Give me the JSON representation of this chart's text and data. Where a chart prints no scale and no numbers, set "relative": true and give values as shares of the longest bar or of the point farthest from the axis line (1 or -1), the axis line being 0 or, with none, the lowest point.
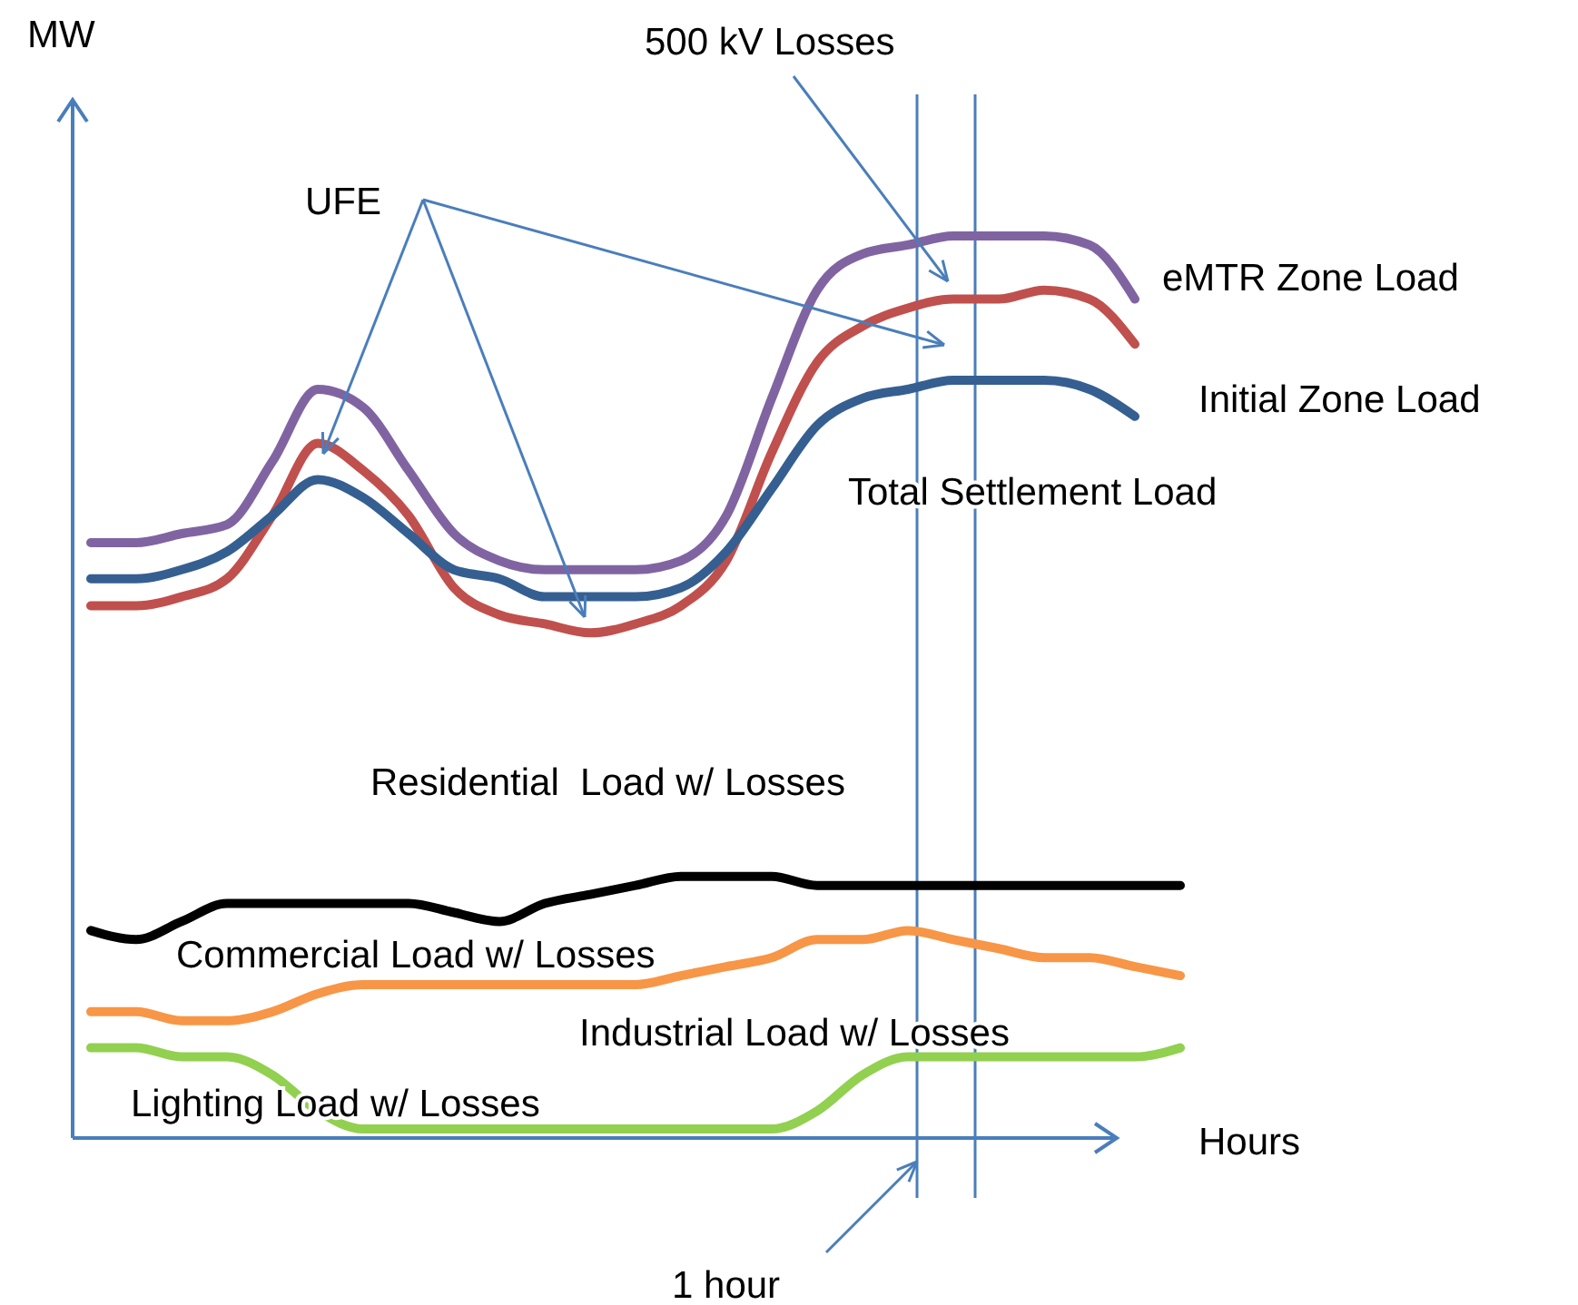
{
  "chart_data": {
    "type": "line",
    "relative": true,
    "xlabel": "Hours",
    "ylabel": "MW",
    "categories": [
      null,
      null,
      null,
      null,
      null,
      null,
      null,
      null,
      null,
      null,
      null,
      null,
      null,
      null,
      null,
      null,
      null,
      null,
      null,
      null,
      null,
      null,
      null,
      null,
      null
    ],
    "series": [
      {
        "name": "eMTR Zone Load",
        "color": "#8064a2",
        "values": [
          0.66,
          0.66,
          0.67,
          0.68,
          0.75,
          0.83,
          0.81,
          0.74,
          0.67,
          0.64,
          0.63,
          0.63,
          0.63,
          0.64,
          0.69,
          0.82,
          0.94,
          0.98,
          0.99,
          1.0,
          1.0,
          1.0,
          0.99,
          0.93,
          null
        ]
      },
      {
        "name": "Initial Zone Load",
        "color": "#c0504d",
        "values": [
          0.59,
          0.59,
          0.6,
          0.62,
          0.69,
          0.77,
          0.74,
          0.69,
          0.61,
          0.58,
          0.57,
          0.56,
          0.57,
          0.59,
          0.64,
          0.76,
          0.86,
          0.9,
          0.92,
          0.93,
          0.93,
          0.94,
          0.93,
          0.88,
          null
        ]
      },
      {
        "name": "Total Settlement Load",
        "color": "#355f91",
        "values": [
          0.62,
          0.62,
          0.63,
          0.65,
          0.69,
          0.73,
          0.71,
          0.67,
          0.63,
          0.62,
          0.6,
          0.6,
          0.6,
          0.61,
          0.65,
          0.72,
          0.79,
          0.82,
          0.83,
          0.84,
          0.84,
          0.84,
          0.83,
          0.8,
          null
        ]
      },
      {
        "name": "Residential  Load w/ Losses",
        "color": "#000000",
        "values": [
          0.23,
          0.22,
          0.24,
          0.26,
          0.26,
          0.26,
          0.26,
          0.26,
          0.25,
          0.24,
          0.26,
          0.27,
          0.28,
          0.29,
          0.29,
          0.29,
          0.28,
          0.28,
          0.28,
          0.28,
          0.28,
          0.28,
          0.28,
          0.28,
          0.28
        ]
      },
      {
        "name": "Commercial Load w/ Losses",
        "color": "#f79646",
        "values": [
          0.14,
          0.14,
          0.13,
          0.13,
          0.14,
          0.16,
          0.17,
          0.17,
          0.17,
          0.17,
          0.17,
          0.17,
          0.17,
          0.18,
          0.19,
          0.2,
          0.22,
          0.22,
          0.23,
          0.22,
          0.21,
          0.2,
          0.2,
          0.19,
          0.18
        ]
      },
      {
        "name": "Lighting Load w/ Losses",
        "color": "#92d050",
        "values": [
          0.1,
          0.1,
          0.09,
          0.09,
          0.07,
          0.03,
          0.01,
          0.01,
          0.01,
          0.01,
          0.01,
          0.01,
          0.01,
          0.01,
          0.01,
          0.01,
          0.03,
          0.07,
          0.09,
          0.09,
          0.09,
          0.09,
          0.09,
          0.09,
          0.1
        ]
      }
    ],
    "annotations": [
      "UFE",
      "500 kV Losses",
      "1 hour",
      "Industrial Load w/ Losses"
    ]
  }
}
